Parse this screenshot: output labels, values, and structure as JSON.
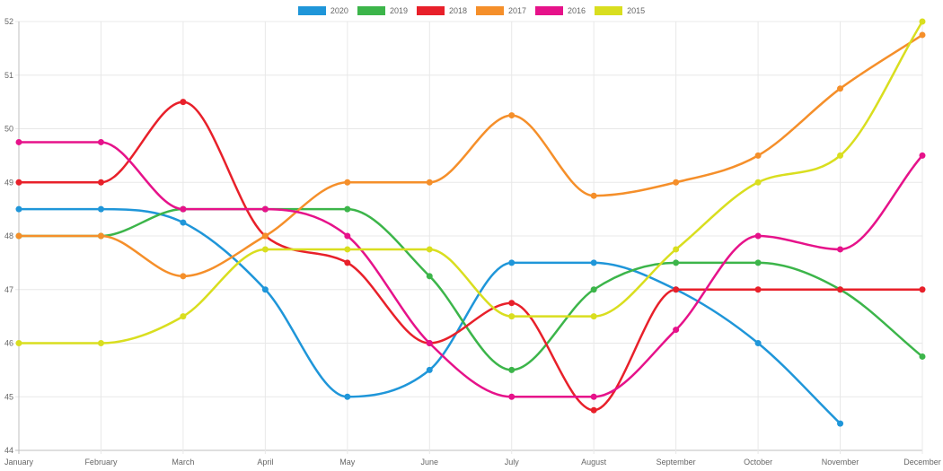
{
  "chart_data": {
    "type": "line",
    "categories": [
      "January",
      "February",
      "March",
      "April",
      "May",
      "June",
      "July",
      "August",
      "September",
      "October",
      "November",
      "December"
    ],
    "ylim": [
      44,
      52
    ],
    "yticks": [
      44,
      45,
      46,
      47,
      48,
      49,
      50,
      51,
      52
    ],
    "grid": true,
    "legend_position": "top-center",
    "series": [
      {
        "name": "2020",
        "color": "#1f96d9",
        "values": [
          48.5,
          48.5,
          48.25,
          47,
          45,
          45.5,
          47.5,
          47.5,
          47,
          46,
          44.5,
          null
        ]
      },
      {
        "name": "2019",
        "color": "#3cb54a",
        "values": [
          48,
          48,
          48.5,
          48.5,
          48.5,
          47.25,
          45.5,
          47,
          47.5,
          47.5,
          47,
          45.75
        ]
      },
      {
        "name": "2018",
        "color": "#e8202a",
        "values": [
          49,
          49,
          50.5,
          48,
          47.5,
          46,
          46.75,
          44.75,
          47,
          47,
          47,
          47
        ]
      },
      {
        "name": "2017",
        "color": "#f58f2a",
        "values": [
          48,
          48,
          47.25,
          48,
          49,
          49,
          50.25,
          48.75,
          49,
          49.5,
          50.75,
          51.75
        ]
      },
      {
        "name": "2016",
        "color": "#e6128a",
        "values": [
          49.75,
          49.75,
          48.5,
          48.5,
          48,
          46,
          45,
          45,
          46.25,
          48,
          47.75,
          49.5
        ]
      },
      {
        "name": "2015",
        "color": "#d9de1f",
        "values": [
          46,
          46,
          46.5,
          47.75,
          47.75,
          47.75,
          46.5,
          46.5,
          47.75,
          49,
          49.5,
          52
        ]
      }
    ]
  }
}
